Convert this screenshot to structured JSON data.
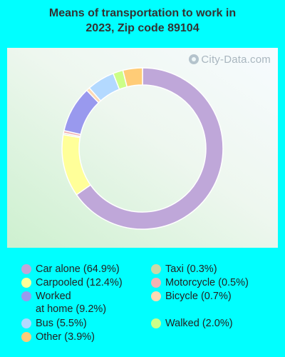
{
  "chart_data": {
    "type": "pie",
    "title": "Means of transportation to work in\n2023, Zip code 89104",
    "watermark": "City-Data.com",
    "legend_position": "bottom",
    "slices": [
      {
        "label": "Car alone (64.9%)",
        "value": 64.9,
        "color": "#bfa7d9"
      },
      {
        "label": "Carpooled (12.4%)",
        "value": 12.4,
        "color": "#ffff99"
      },
      {
        "label": "Taxi (0.3%)",
        "value": 0.3,
        "color": "#c8d9a8"
      },
      {
        "label": "Motorcycle (0.5%)",
        "value": 0.5,
        "color": "#f2b3b3"
      },
      {
        "label": "Worked\nat home (9.2%)",
        "value": 9.2,
        "color": "#9999ee"
      },
      {
        "label": "Bicycle (0.7%)",
        "value": 0.7,
        "color": "#ffd9b3"
      },
      {
        "label": "Bus (5.5%)",
        "value": 5.5,
        "color": "#b3d9ff"
      },
      {
        "label": "Walked (2.0%)",
        "value": 2.0,
        "color": "#ccff88"
      },
      {
        "label": "Other (3.9%)",
        "value": 3.9,
        "color": "#ffcc77"
      }
    ]
  }
}
